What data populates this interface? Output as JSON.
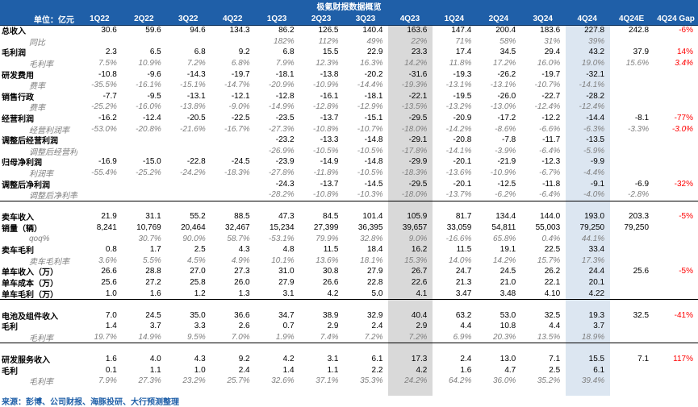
{
  "table": {
    "title": "极氪财报数据概览",
    "header": [
      "单位：亿元",
      "1Q22",
      "2Q22",
      "3Q22",
      "4Q22",
      "1Q23",
      "2Q23",
      "3Q23",
      "4Q23",
      "1Q24",
      "2Q24",
      "3Q24",
      "4Q24",
      "4Q24E",
      "4Q24 Gap"
    ],
    "sections": [
      {
        "rows": [
          {
            "label": "总收入",
            "cells": [
              "30.6",
              "59.6",
              "94.6",
              "134.3",
              "86.2",
              "126.5",
              "140.4",
              "163.6",
              "147.4",
              "200.4",
              "183.6",
              "227.8",
              "242.8",
              "-6%"
            ]
          },
          {
            "label": "同比",
            "cells": [
              null,
              null,
              null,
              null,
              "182%",
              "112%",
              "49%",
              "22%",
              "71%",
              "58%",
              "31%",
              "39%",
              null,
              null
            ]
          },
          {
            "label": "毛利润",
            "cells": [
              "2.3",
              "6.5",
              "6.8",
              "9.2",
              "6.8",
              "15.5",
              "22.9",
              "23.3",
              "17.4",
              "34.5",
              "29.4",
              "43.2",
              "37.9",
              "14%"
            ]
          },
          {
            "label": "毛利率",
            "cells": [
              "7.5%",
              "10.9%",
              "7.2%",
              "6.8%",
              "7.9%",
              "12.3%",
              "16.3%",
              "14.2%",
              "11.8%",
              "17.2%",
              "16.0%",
              "19.0%",
              "15.6%",
              "3.4%"
            ]
          },
          {
            "label": "研发费用",
            "cells": [
              "-10.8",
              "-9.6",
              "-14.3",
              "-19.7",
              "-18.1",
              "-13.8",
              "-20.2",
              "-31.6",
              "-19.3",
              "-26.2",
              "-19.7",
              "-32.1",
              null,
              null
            ]
          },
          {
            "label": "费率",
            "cells": [
              "-35.5%",
              "-16.1%",
              "-15.1%",
              "-14.7%",
              "-20.9%",
              "-10.9%",
              "-14.4%",
              "-19.3%",
              "-13.1%",
              "-13.1%",
              "-10.7%",
              "-14.1%",
              null,
              null
            ]
          },
          {
            "label": "销售行政",
            "cells": [
              "-7.7",
              "-9.5",
              "-13.1",
              "-12.1",
              "-12.8",
              "-16.1",
              "-18.1",
              "-22.1",
              "-19.5",
              "-26.0",
              "-22.7",
              "-28.2",
              null,
              null
            ]
          },
          {
            "label": "费率",
            "cells": [
              "-25.2%",
              "-16.0%",
              "-13.8%",
              "-9.0%",
              "-14.9%",
              "-12.8%",
              "-12.9%",
              "-13.5%",
              "-13.2%",
              "-13.0%",
              "-12.4%",
              "-12.4%",
              null,
              null
            ]
          },
          {
            "label": "经营利润",
            "cells": [
              "-16.2",
              "-12.4",
              "-20.5",
              "-22.5",
              "-23.5",
              "-13.7",
              "-15.1",
              "-29.5",
              "-20.9",
              "-17.2",
              "-12.2",
              "-14.4",
              "-8.1",
              "-77%"
            ]
          },
          {
            "label": "经营利润率",
            "cells": [
              "-53.0%",
              "-20.8%",
              "-21.6%",
              "-16.7%",
              "-27.3%",
              "-10.8%",
              "-10.7%",
              "-18.0%",
              "-14.2%",
              "-8.6%",
              "-6.6%",
              "-6.3%",
              "-3.3%",
              "-3.0%"
            ]
          },
          {
            "label": "调整后经营利润",
            "cells": [
              null,
              null,
              null,
              null,
              "-23.2",
              "-13.3",
              "-14.8",
              "-29.1",
              "-20.8",
              "-7.8",
              "-11.7",
              "-13.5",
              null,
              null
            ]
          },
          {
            "label": "调整后经营利润率",
            "cells": [
              null,
              null,
              null,
              null,
              "-26.9%",
              "-10.5%",
              "-10.5%",
              "-17.8%",
              "-14.1%",
              "-3.9%",
              "-6.4%",
              "-5.9%",
              null,
              null
            ]
          },
          {
            "label": "归母净利润",
            "cells": [
              "-16.9",
              "-15.0",
              "-22.8",
              "-24.5",
              "-23.9",
              "-14.9",
              "-14.8",
              "-29.9",
              "-20.1",
              "-21.9",
              "-12.3",
              "-9.9",
              null,
              null
            ]
          },
          {
            "label": "利润率",
            "cells": [
              "-55.4%",
              "-25.2%",
              "-24.2%",
              "-18.3%",
              "-27.8%",
              "-11.8%",
              "-10.5%",
              "-18.3%",
              "-13.6%",
              "-10.9%",
              "-6.7%",
              "-4.4%",
              null,
              null
            ]
          },
          {
            "label": "调整后净利润",
            "cells": [
              null,
              null,
              null,
              null,
              "-24.3",
              "-13.7",
              "-14.5",
              "-29.5",
              "-20.1",
              "-12.5",
              "-11.8",
              "-9.1",
              "-6.9",
              "-32%"
            ]
          },
          {
            "label": "调整后净利率",
            "cells": [
              null,
              null,
              null,
              null,
              "-28.2%",
              "-10.8%",
              "-10.3%",
              "-18.0%",
              "-13.7%",
              "-6.2%",
              "-6.4%",
              "-4.0%",
              "-2.8%",
              null
            ]
          }
        ]
      },
      {
        "rows": [
          {
            "label": "卖车收入",
            "cells": [
              "21.9",
              "31.1",
              "55.2",
              "88.5",
              "47.3",
              "84.5",
              "101.4",
              "105.9",
              "81.7",
              "134.4",
              "144.0",
              "193.0",
              "203.3",
              "-5%"
            ]
          },
          {
            "label": "销量（辆）",
            "cells": [
              "8,241",
              "10,769",
              "20,464",
              "32,467",
              "15,234",
              "27,399",
              "36,395",
              "39,657",
              "33,059",
              "54,811",
              "55,003",
              "79,250",
              "79,250",
              null
            ]
          },
          {
            "label": "qoq%",
            "cells": [
              null,
              "30.7%",
              "90.0%",
              "58.7%",
              "-53.1%",
              "79.9%",
              "32.8%",
              "9.0%",
              "-16.6%",
              "65.8%",
              "0.4%",
              "44.1%",
              null,
              null
            ]
          },
          {
            "label": "卖车毛利",
            "cells": [
              "0.8",
              "1.7",
              "2.5",
              "4.3",
              "4.8",
              "11.5",
              "18.4",
              "16.2",
              "11.5",
              "19.1",
              "22.5",
              "33.4",
              null,
              null
            ]
          },
          {
            "label": "卖车毛利率",
            "cells": [
              "3.6%",
              "5.5%",
              "4.5%",
              "4.9%",
              "10.1%",
              "13.6%",
              "18.1%",
              "15.3%",
              "14.0%",
              "14.2%",
              "15.7%",
              "17.3%",
              null,
              null
            ]
          },
          {
            "label": "单车收入（万）",
            "cells": [
              "26.6",
              "28.8",
              "27.0",
              "27.3",
              "31.0",
              "30.8",
              "27.9",
              "26.7",
              "24.7",
              "24.5",
              "26.2",
              "24.4",
              "25.6",
              "-5%"
            ]
          },
          {
            "label": "单车成本（万）",
            "cells": [
              "25.6",
              "27.2",
              "25.8",
              "26.0",
              "27.9",
              "26.6",
              "22.8",
              "22.6",
              "21.3",
              "21.0",
              "22.1",
              "20.1",
              null,
              null
            ]
          },
          {
            "label": "单车毛利（万）",
            "cells": [
              "1.0",
              "1.6",
              "1.2",
              "1.3",
              "3.1",
              "4.2",
              "5.0",
              "4.1",
              "3.47",
              "3.48",
              "4.10",
              "4.22",
              null,
              null
            ]
          }
        ]
      },
      {
        "rows": [
          {
            "label": "电池及组件收入",
            "cells": [
              "7.0",
              "24.5",
              "35.0",
              "36.6",
              "34.7",
              "38.9",
              "32.9",
              "40.4",
              "63.2",
              "53.0",
              "32.5",
              "19.3",
              "32.5",
              "-41%"
            ]
          },
          {
            "label": "毛利",
            "cells": [
              "1.4",
              "3.7",
              "3.3",
              "2.6",
              "0.7",
              "2.9",
              "2.4",
              "2.9",
              "4.4",
              "10.8",
              "4.4",
              "3.7",
              null,
              null
            ]
          },
          {
            "label": "毛利率",
            "cells": [
              "19.7%",
              "14.9%",
              "9.5%",
              "7.0%",
              "1.9%",
              "7.4%",
              "7.2%",
              "7.2%",
              "6.9%",
              "20.3%",
              "13.5%",
              "18.9%",
              null,
              null
            ]
          }
        ]
      },
      {
        "rows": [
          {
            "label": "研发服务收入",
            "cells": [
              "1.6",
              "4.0",
              "4.3",
              "9.2",
              "4.2",
              "3.1",
              "6.1",
              "17.3",
              "2.4",
              "13.0",
              "7.1",
              "15.5",
              "7.1",
              "117%"
            ]
          },
          {
            "label": "毛利",
            "cells": [
              "0.1",
              "1.1",
              "1.0",
              "2.4",
              "1.4",
              "1.1",
              "2.2",
              "4.2",
              "1.6",
              "4.7",
              "2.5",
              "6.1",
              null,
              null
            ]
          },
          {
            "label": "毛利率",
            "cells": [
              "7.9%",
              "27.3%",
              "23.2%",
              "25.7%",
              "32.6%",
              "37.1%",
              "35.3%",
              "24.2%",
              "64.2%",
              "36.0%",
              "35.2%",
              "39.4%",
              null,
              null
            ]
          }
        ]
      }
    ],
    "source": "来源：彭博、公司财报、海豚投研、大行预测整理"
  }
}
